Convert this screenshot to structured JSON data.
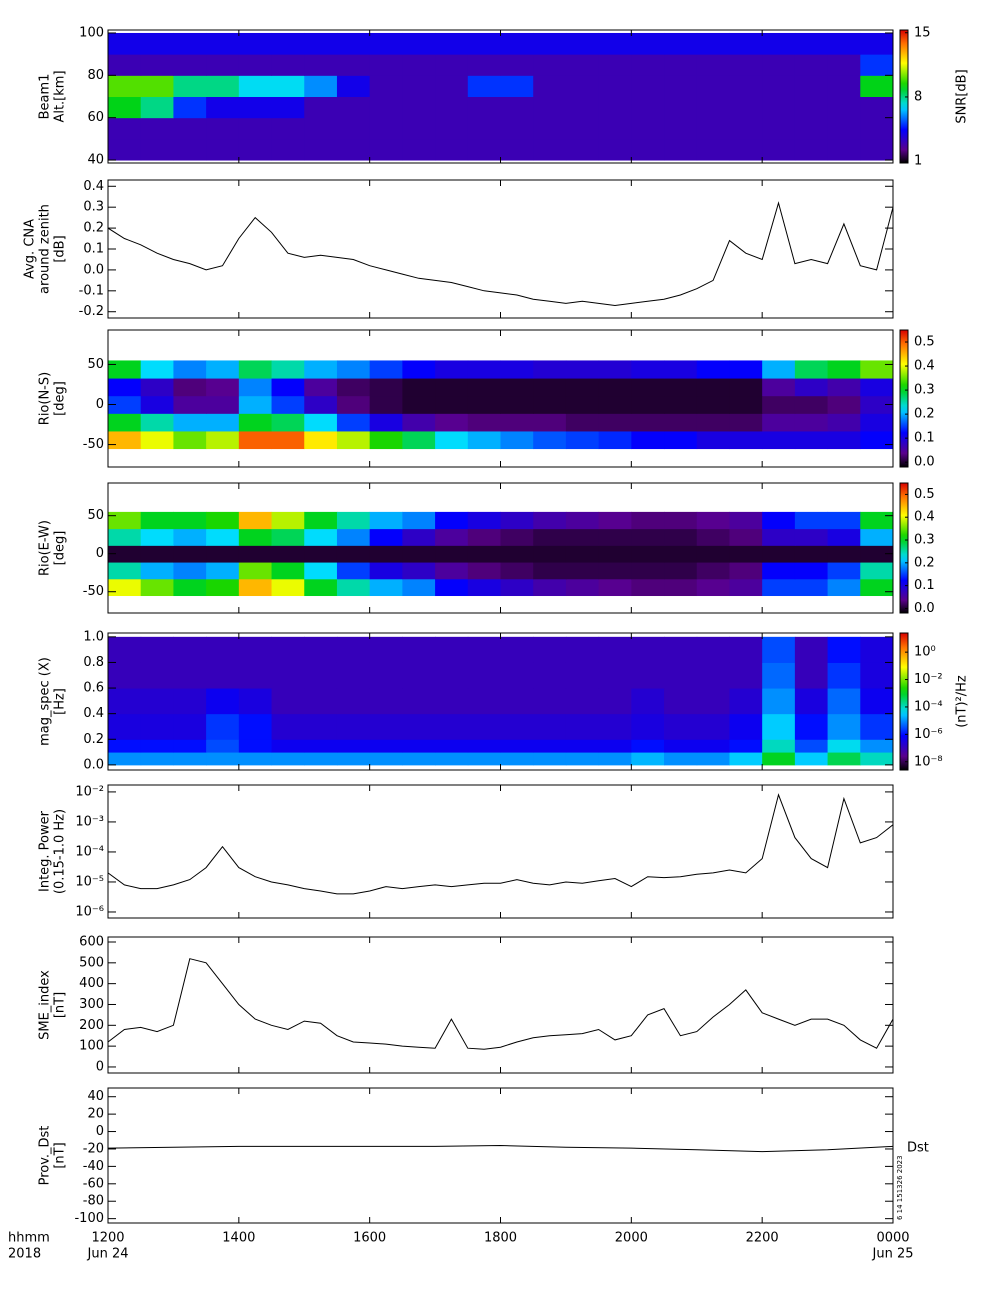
{
  "chart_data": [
    {
      "type": "heatmap",
      "ylabel": [
        "Beam1",
        "Alt.[km]"
      ],
      "ylim": [
        38.6,
        101.4
      ],
      "yticks": [
        40,
        60,
        80,
        100
      ],
      "xbins": [
        12,
        12.5,
        13,
        13.5,
        14,
        14.5,
        15,
        15.5,
        16,
        16.5,
        17,
        17.5,
        18,
        18.5,
        19,
        19.5,
        20,
        20.5,
        21,
        21.5,
        22,
        22.5,
        23,
        23.5,
        24
      ],
      "ybins": [
        40,
        50,
        60,
        70,
        80,
        90,
        100
      ],
      "z": [
        [
          3,
          3,
          3,
          3,
          3,
          3,
          3,
          3,
          3,
          3,
          3,
          3,
          3,
          3,
          3,
          3,
          3,
          3,
          3,
          3,
          3,
          3,
          3,
          3
        ],
        [
          3,
          3,
          3,
          3,
          3,
          3,
          3,
          3,
          3,
          3,
          3,
          3,
          3,
          3,
          3,
          3,
          3,
          3,
          3,
          3,
          3,
          3,
          3,
          3
        ],
        [
          9,
          8,
          5,
          4,
          4,
          4,
          3,
          3,
          3,
          3,
          3,
          3,
          3,
          3,
          3,
          3,
          3,
          3,
          3,
          3,
          3,
          3,
          3,
          3
        ],
        [
          10,
          10,
          8,
          8,
          7,
          7,
          6,
          4,
          3,
          3,
          3,
          5,
          5,
          3,
          3,
          3,
          3,
          3,
          3,
          3,
          3,
          3,
          3,
          9
        ],
        [
          3,
          3,
          3,
          3,
          3,
          3,
          3,
          3,
          3,
          3,
          3,
          3,
          3,
          3,
          3,
          3,
          3,
          3,
          3,
          3,
          3,
          3,
          3,
          5
        ],
        [
          4,
          4,
          4,
          4,
          4,
          4,
          4,
          4,
          4,
          4,
          4,
          4,
          4,
          4,
          4,
          4,
          4,
          4,
          4,
          4,
          4,
          4,
          4,
          4
        ]
      ],
      "zlim": [
        0.8,
        15.3
      ],
      "zticks": [
        1,
        8,
        15
      ],
      "zlabel": "SNR[dB]"
    },
    {
      "type": "line",
      "ylabel": [
        "Avg. CNA",
        "around zenith",
        "[dB]"
      ],
      "ylim": [
        -0.23,
        0.43
      ],
      "yticks": [
        -0.2,
        -0.1,
        {
          "value": 0,
          "label": "0.0"
        },
        0.1,
        0.2,
        0.3,
        0.4
      ],
      "color": "#000000",
      "x": [
        12,
        12.25,
        12.5,
        12.75,
        13,
        13.25,
        13.5,
        13.75,
        14,
        14.25,
        14.5,
        14.75,
        15,
        15.25,
        15.5,
        15.75,
        16,
        16.25,
        16.5,
        16.75,
        17,
        17.25,
        17.5,
        17.75,
        18,
        18.25,
        18.5,
        18.75,
        19,
        19.25,
        19.5,
        19.75,
        20,
        20.25,
        20.5,
        20.75,
        21,
        21.25,
        21.5,
        21.75,
        22,
        22.25,
        22.5,
        22.75,
        23,
        23.25,
        23.5,
        23.75,
        24
      ],
      "values": [
        0.2,
        0.15,
        0.12,
        0.08,
        0.05,
        0.03,
        0,
        0.02,
        0.15,
        0.25,
        0.18,
        0.08,
        0.06,
        0.07,
        0.06,
        0.05,
        0.02,
        0,
        -0.02,
        -0.04,
        -0.05,
        -0.06,
        -0.08,
        -0.1,
        -0.11,
        -0.12,
        -0.14,
        -0.15,
        -0.16,
        -0.15,
        -0.16,
        -0.17,
        -0.16,
        -0.15,
        -0.14,
        -0.12,
        -0.09,
        -0.05,
        0.14,
        0.08,
        0.05,
        0.32,
        0.03,
        0.05,
        0.03,
        0.22,
        0.02,
        0,
        0.3
      ]
    },
    {
      "type": "heatmap",
      "ylabel": [
        "Rio(N-S)",
        "[deg]"
      ],
      "ylim": [
        -78,
        93
      ],
      "yticks": [
        -50,
        0,
        50
      ],
      "xbins": [
        12,
        12.5,
        13,
        13.5,
        14,
        14.5,
        15,
        15.5,
        16,
        16.5,
        17,
        17.5,
        18,
        18.5,
        19,
        19.5,
        20,
        20.5,
        21,
        21.5,
        22,
        22.5,
        23,
        23.5,
        24
      ],
      "ybins": [
        -55,
        -33,
        -11,
        11,
        33,
        55
      ],
      "z": [
        [
          0.45,
          0.4,
          0.35,
          0.38,
          0.5,
          0.5,
          0.42,
          0.38,
          0.32,
          0.28,
          0.22,
          0.2,
          0.18,
          0.16,
          0.15,
          0.14,
          0.12,
          0.12,
          0.1,
          0.1,
          0.1,
          0.1,
          0.1,
          0.12
        ],
        [
          0.3,
          0.25,
          0.2,
          0.2,
          0.3,
          0.28,
          0.22,
          0.15,
          0.1,
          0.06,
          0.04,
          0.03,
          0.03,
          0.03,
          0.02,
          0.02,
          0.02,
          0.02,
          0.02,
          0.02,
          0.05,
          0.05,
          0.06,
          0.1
        ],
        [
          0.15,
          0.1,
          0.05,
          0.05,
          0.2,
          0.15,
          0.08,
          0.03,
          0.01,
          0,
          0,
          0,
          0,
          0,
          0,
          0,
          0,
          0,
          0,
          0,
          0.02,
          0.02,
          0.03,
          0.08
        ],
        [
          0.12,
          0.08,
          0.03,
          0.04,
          0.18,
          0.12,
          0.05,
          0.02,
          0.01,
          0,
          0,
          0,
          0,
          0,
          0,
          0,
          0,
          0,
          0,
          0,
          0.05,
          0.08,
          0.06,
          0.1
        ],
        [
          0.3,
          0.22,
          0.18,
          0.2,
          0.28,
          0.25,
          0.2,
          0.18,
          0.15,
          0.12,
          0.1,
          0.1,
          0.1,
          0.09,
          0.09,
          0.09,
          0.1,
          0.1,
          0.12,
          0.12,
          0.2,
          0.28,
          0.3,
          0.35
        ]
      ],
      "zlim": [
        -0.02,
        0.55
      ],
      "zticks": [
        {
          "value": 0,
          "label": "0.0"
        },
        0.1,
        0.2,
        0.3,
        0.4,
        0.5
      ]
    },
    {
      "type": "heatmap",
      "ylabel": [
        "Rio(E-W)",
        "[deg]"
      ],
      "ylim": [
        -78,
        93
      ],
      "yticks": [
        -50,
        0,
        50
      ],
      "xbins": [
        12,
        12.5,
        13,
        13.5,
        14,
        14.5,
        15,
        15.5,
        16,
        16.5,
        17,
        17.5,
        18,
        18.5,
        19,
        19.5,
        20,
        20.5,
        21,
        21.5,
        22,
        22.5,
        23,
        23.5,
        24
      ],
      "ybins": [
        -55,
        -33,
        -11,
        11,
        33,
        55
      ],
      "z": [
        [
          0.4,
          0.35,
          0.3,
          0.32,
          0.45,
          0.4,
          0.3,
          0.25,
          0.2,
          0.18,
          0.12,
          0.1,
          0.08,
          0.06,
          0.05,
          0.04,
          0.03,
          0.03,
          0.04,
          0.05,
          0.15,
          0.15,
          0.18,
          0.3
        ],
        [
          0.25,
          0.2,
          0.18,
          0.2,
          0.35,
          0.3,
          0.22,
          0.15,
          0.1,
          0.08,
          0.05,
          0.03,
          0.02,
          0.01,
          0.01,
          0.01,
          0.01,
          0.01,
          0.02,
          0.03,
          0.12,
          0.12,
          0.15,
          0.25
        ],
        [
          0,
          0,
          0,
          0,
          0,
          0,
          0,
          0,
          0,
          0,
          0,
          0,
          0,
          0,
          0,
          0,
          0,
          0,
          0,
          0,
          0,
          0,
          0,
          0
        ],
        [
          0.25,
          0.22,
          0.2,
          0.22,
          0.3,
          0.28,
          0.22,
          0.18,
          0.12,
          0.08,
          0.05,
          0.03,
          0.02,
          0.01,
          0.01,
          0.01,
          0.01,
          0.01,
          0.02,
          0.03,
          0.08,
          0.08,
          0.1,
          0.2
        ],
        [
          0.35,
          0.3,
          0.3,
          0.32,
          0.45,
          0.38,
          0.3,
          0.25,
          0.2,
          0.18,
          0.12,
          0.1,
          0.08,
          0.06,
          0.05,
          0.04,
          0.03,
          0.03,
          0.04,
          0.05,
          0.12,
          0.15,
          0.15,
          0.3
        ]
      ],
      "zlim": [
        -0.02,
        0.55
      ],
      "zticks": [
        {
          "value": 0,
          "label": "0.0"
        },
        0.1,
        0.2,
        0.3,
        0.4,
        0.5
      ]
    },
    {
      "type": "heatmap",
      "ylabel": [
        "mag_spec (X)",
        "[Hz]"
      ],
      "ylim": [
        -0.04,
        1.03
      ],
      "yticks": [
        {
          "value": 0,
          "label": "0.0"
        },
        0.2,
        0.4,
        0.6,
        0.8,
        {
          "value": 1,
          "label": "1.0"
        }
      ],
      "xbins": [
        12,
        12.5,
        13,
        13.5,
        14,
        14.5,
        15,
        15.5,
        16,
        16.5,
        17,
        17.5,
        18,
        18.5,
        19,
        19.5,
        20,
        20.5,
        21,
        21.5,
        22,
        22.5,
        23,
        23.5,
        24
      ],
      "ybins": [
        0,
        0.1,
        0.2,
        0.4,
        0.6,
        0.8,
        1.0
      ],
      "z": [
        [
          1e-05,
          1e-05,
          1e-05,
          1e-05,
          1e-05,
          1e-05,
          1e-05,
          1e-05,
          1e-05,
          1e-05,
          1e-05,
          1e-05,
          1e-05,
          1e-05,
          1e-05,
          1e-05,
          2e-05,
          1e-05,
          1e-05,
          3e-05,
          0.001,
          3e-05,
          0.0005,
          0.0001
        ],
        [
          1e-06,
          1e-06,
          1e-06,
          3e-06,
          1e-06,
          5e-07,
          5e-07,
          5e-07,
          5e-07,
          5e-07,
          5e-07,
          5e-07,
          5e-07,
          5e-07,
          5e-07,
          5e-07,
          1e-06,
          5e-07,
          5e-07,
          1e-06,
          0.0001,
          3e-06,
          5e-05,
          1e-05
        ],
        [
          3e-07,
          3e-07,
          3e-07,
          2e-06,
          1e-06,
          2e-07,
          2e-07,
          2e-07,
          2e-07,
          2e-07,
          2e-07,
          2e-07,
          2e-07,
          2e-07,
          2e-07,
          2e-07,
          3e-07,
          2e-07,
          2e-07,
          5e-07,
          3e-05,
          1e-06,
          1e-05,
          2e-06
        ],
        [
          2e-07,
          2e-07,
          2e-07,
          5e-07,
          3e-07,
          1e-07,
          1e-07,
          1e-07,
          1e-07,
          1e-07,
          1e-07,
          1e-07,
          1e-07,
          1e-07,
          1e-07,
          1e-07,
          2e-07,
          1e-07,
          1e-07,
          2e-07,
          1e-05,
          3e-07,
          5e-06,
          5e-07
        ],
        [
          1e-07,
          1e-07,
          1e-07,
          1e-07,
          1e-07,
          1e-07,
          1e-07,
          1e-07,
          1e-07,
          1e-07,
          1e-07,
          1e-07,
          1e-07,
          1e-07,
          1e-07,
          1e-07,
          1e-07,
          1e-07,
          1e-07,
          1e-07,
          5e-06,
          1e-07,
          2e-06,
          3e-07
        ],
        [
          1e-07,
          1e-07,
          1e-07,
          1e-07,
          1e-07,
          1e-07,
          1e-07,
          1e-07,
          1e-07,
          1e-07,
          1e-07,
          1e-07,
          1e-07,
          1e-07,
          1e-07,
          1e-07,
          1e-07,
          1e-07,
          1e-07,
          1e-07,
          3e-06,
          1e-07,
          1e-06,
          3e-07
        ]
      ],
      "zlog": true,
      "zlim": [
        2.5e-09,
        25
      ],
      "zticks": [
        {
          "value": 1e-08,
          "label": "10⁻⁸"
        },
        {
          "value": 1e-06,
          "label": "10⁻⁶"
        },
        {
          "value": 0.0001,
          "label": "10⁻⁴"
        },
        {
          "value": 0.01,
          "label": "10⁻²"
        },
        {
          "value": 1,
          "label": "10⁰"
        }
      ],
      "zlabel": "(nT)²/Hz"
    },
    {
      "type": "line",
      "ylabel": [
        "Integ. Power",
        "(0.15-1.0 Hz)"
      ],
      "log": true,
      "ylim": [
        6.3e-07,
        0.017
      ],
      "yticks": [
        {
          "value": 1e-06,
          "label": "10⁻⁶"
        },
        {
          "value": 1e-05,
          "label": "10⁻⁵"
        },
        {
          "value": 0.0001,
          "label": "10⁻⁴"
        },
        {
          "value": 0.001,
          "label": "10⁻³"
        },
        {
          "value": 0.01,
          "label": "10⁻²"
        }
      ],
      "color": "#000000",
      "x": [
        12,
        12.25,
        12.5,
        12.75,
        13,
        13.25,
        13.5,
        13.75,
        14,
        14.25,
        14.5,
        14.75,
        15,
        15.25,
        15.5,
        15.75,
        16,
        16.25,
        16.5,
        16.75,
        17,
        17.25,
        17.5,
        17.75,
        18,
        18.25,
        18.5,
        18.75,
        19,
        19.25,
        19.5,
        19.75,
        20,
        20.25,
        20.5,
        20.75,
        21,
        21.25,
        21.5,
        21.75,
        22,
        22.25,
        22.5,
        22.75,
        23,
        23.25,
        23.5,
        23.75,
        24
      ],
      "values": [
        2e-05,
        8e-06,
        6e-06,
        6e-06,
        8e-06,
        1.2e-05,
        3e-05,
        0.00015,
        3e-05,
        1.5e-05,
        1e-05,
        8e-06,
        6e-06,
        5e-06,
        4e-06,
        4e-06,
        5e-06,
        7e-06,
        6e-06,
        7e-06,
        8e-06,
        7e-06,
        8e-06,
        9e-06,
        9e-06,
        1.2e-05,
        9e-06,
        8e-06,
        1e-05,
        9e-06,
        1.1e-05,
        1.3e-05,
        7e-06,
        1.5e-05,
        1.4e-05,
        1.5e-05,
        1.8e-05,
        2e-05,
        2.5e-05,
        2e-05,
        6e-05,
        0.008,
        0.0003,
        6e-05,
        3e-05,
        0.006,
        0.0002,
        0.0003,
        0.0008
      ]
    },
    {
      "type": "line",
      "ylabel": [
        "SME_index",
        "[nT]"
      ],
      "ylim": [
        -29,
        624
      ],
      "yticks": [
        0,
        100,
        200,
        300,
        400,
        500,
        600
      ],
      "color": "#000000",
      "x": [
        12,
        12.25,
        12.5,
        12.75,
        13,
        13.25,
        13.5,
        13.75,
        14,
        14.25,
        14.5,
        14.75,
        15,
        15.25,
        15.5,
        15.75,
        16,
        16.25,
        16.5,
        16.75,
        17,
        17.25,
        17.5,
        17.75,
        18,
        18.25,
        18.5,
        18.75,
        19,
        19.25,
        19.5,
        19.75,
        20,
        20.25,
        20.5,
        20.75,
        21,
        21.25,
        21.5,
        21.75,
        22,
        22.25,
        22.5,
        22.75,
        23,
        23.25,
        23.5,
        23.75,
        24
      ],
      "values": [
        120,
        180,
        190,
        170,
        200,
        520,
        500,
        400,
        300,
        230,
        200,
        180,
        220,
        210,
        150,
        120,
        115,
        110,
        100,
        95,
        90,
        230,
        90,
        85,
        95,
        120,
        140,
        150,
        155,
        160,
        180,
        130,
        150,
        250,
        280,
        150,
        170,
        240,
        300,
        370,
        260,
        230,
        200,
        230,
        230,
        200,
        130,
        90,
        230
      ]
    },
    {
      "type": "line",
      "ylabel": [
        "Prov._Dst",
        "[nT]"
      ],
      "ylim": [
        -105,
        50
      ],
      "yticks": [
        -100,
        -80,
        -60,
        -40,
        -20,
        0,
        20,
        40
      ],
      "color": "#000000",
      "x": [
        12,
        13,
        14,
        15,
        16,
        17,
        18,
        19,
        20,
        21,
        22,
        23,
        24
      ],
      "values": [
        -19,
        -18,
        -17,
        -17,
        -17,
        -17,
        -16,
        -18,
        -19,
        -21,
        -23,
        -21,
        -17
      ],
      "annotations": [
        "Dst",
        "6 14 151326 2023"
      ],
      "xlim": [
        12,
        24
      ],
      "xticks": [
        {
          "value": 12,
          "label": "1200"
        },
        {
          "value": 14,
          "label": "1400"
        },
        {
          "value": 16,
          "label": "1600"
        },
        {
          "value": 18,
          "label": "1800"
        },
        {
          "value": 20,
          "label": "2000"
        },
        {
          "value": 22,
          "label": "2200"
        },
        {
          "value": 24,
          "label": "0000"
        }
      ],
      "xlabel": [
        "hhmm",
        "2018"
      ],
      "dates": [
        "Jun 24",
        "Jun 25"
      ]
    }
  ]
}
